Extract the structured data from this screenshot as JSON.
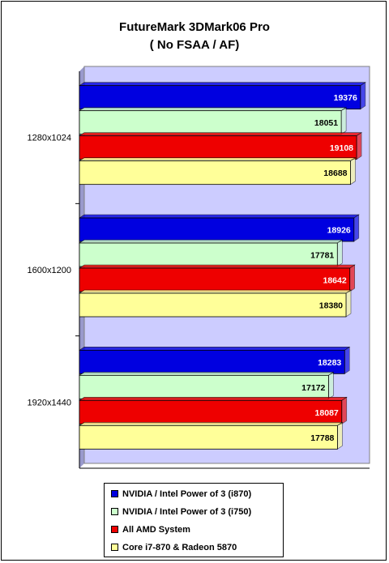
{
  "chart_data": {
    "type": "bar",
    "orientation": "horizontal",
    "title": "FutureMark 3DMark06 Pro",
    "subtitle": "( No FSAA / AF)",
    "categories": [
      "1280x1024",
      "1600x1200",
      "1920x1440"
    ],
    "series": [
      {
        "name": "NVIDIA / Intel Power of 3 (i870)",
        "color": "#0000e0",
        "label_color": "#ffffff",
        "values": [
          19376,
          18926,
          18283
        ]
      },
      {
        "name": "NVIDIA / Intel Power of 3 (i750)",
        "color": "#ccffcc",
        "label_color": "#000000",
        "values": [
          18051,
          17781,
          17172
        ]
      },
      {
        "name": "All AMD System",
        "color": "#ee0000",
        "label_color": "#ffffff",
        "values": [
          19108,
          18642,
          18087
        ]
      },
      {
        "name": "Core i7-870 & Radeon 5870",
        "color": "#ffff99",
        "label_color": "#000000",
        "values": [
          18688,
          18380,
          17788
        ]
      }
    ],
    "plot_background": "#ccccff",
    "xlim": [
      0,
      20000
    ],
    "xlabel": "",
    "ylabel": "",
    "grid": false,
    "legend_position": "bottom"
  }
}
